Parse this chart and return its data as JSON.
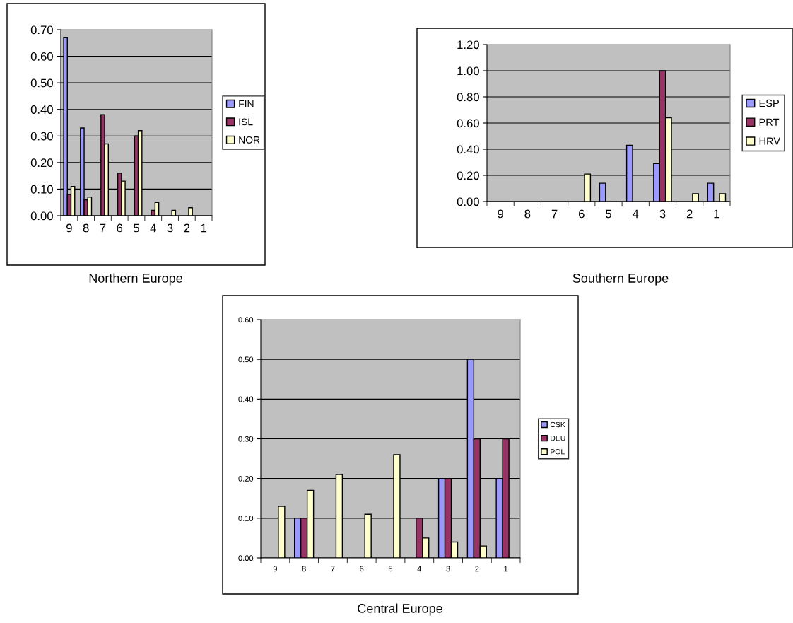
{
  "chart_data": [
    {
      "type": "bar",
      "title": "Northern Europe",
      "categories": [
        "9",
        "8",
        "7",
        "6",
        "5",
        "4",
        "3",
        "2",
        "1"
      ],
      "ylim": [
        0,
        0.7
      ],
      "yticks": [
        {
          "value": 0,
          "label": "0.00"
        },
        {
          "value": 0.1,
          "label": "0.10"
        },
        {
          "value": 0.2,
          "label": "0.20"
        },
        {
          "value": 0.3,
          "label": "0.30"
        },
        {
          "value": 0.4,
          "label": "0.40"
        },
        {
          "value": 0.5,
          "label": "0.50"
        },
        {
          "value": 0.6,
          "label": "0.60"
        },
        {
          "value": 0.7,
          "label": "0.70"
        }
      ],
      "grid": "y",
      "legend": "right",
      "series": [
        {
          "name": "FIN",
          "color": "#9999ff",
          "values": [
            0.67,
            0.33,
            null,
            null,
            null,
            null,
            null,
            null,
            null
          ]
        },
        {
          "name": "ISL",
          "color": "#993366",
          "values": [
            0.08,
            0.06,
            0.38,
            0.16,
            0.3,
            0.02,
            null,
            null,
            null
          ]
        },
        {
          "name": "NOR",
          "color": "#ffffcc",
          "values": [
            0.11,
            0.07,
            0.27,
            0.13,
            0.32,
            0.05,
            0.02,
            0.03,
            null
          ]
        }
      ]
    },
    {
      "type": "bar",
      "title": "Southern Europe",
      "categories": [
        "9",
        "8",
        "7",
        "6",
        "5",
        "4",
        "3",
        "2",
        "1"
      ],
      "ylim": [
        0,
        1.2
      ],
      "yticks": [
        {
          "value": 0,
          "label": "0.00"
        },
        {
          "value": 0.2,
          "label": "0.20"
        },
        {
          "value": 0.4,
          "label": "0.40"
        },
        {
          "value": 0.6,
          "label": "0.60"
        },
        {
          "value": 0.8,
          "label": "0.80"
        },
        {
          "value": 1.0,
          "label": "1.00"
        },
        {
          "value": 1.2,
          "label": "1.20"
        }
      ],
      "grid": "y",
      "legend": "right",
      "series": [
        {
          "name": "ESP",
          "color": "#9999ff",
          "values": [
            null,
            null,
            null,
            null,
            0.14,
            0.43,
            0.29,
            null,
            0.14
          ]
        },
        {
          "name": "PRT",
          "color": "#993366",
          "values": [
            null,
            null,
            null,
            null,
            null,
            null,
            1.0,
            null,
            null
          ]
        },
        {
          "name": "HRV",
          "color": "#ffffcc",
          "values": [
            null,
            null,
            null,
            0.21,
            null,
            null,
            0.64,
            0.06,
            0.06
          ]
        }
      ]
    },
    {
      "type": "bar",
      "title": "Central Europe",
      "categories": [
        "9",
        "8",
        "7",
        "6",
        "5",
        "4",
        "3",
        "2",
        "1"
      ],
      "ylim": [
        0,
        0.6
      ],
      "yticks": [
        {
          "value": 0,
          "label": "0.00"
        },
        {
          "value": 0.1,
          "label": "0.10"
        },
        {
          "value": 0.2,
          "label": "0.20"
        },
        {
          "value": 0.3,
          "label": "0.30"
        },
        {
          "value": 0.4,
          "label": "0.40"
        },
        {
          "value": 0.5,
          "label": "0.50"
        },
        {
          "value": 0.6,
          "label": "0.60"
        }
      ],
      "grid": "y",
      "legend": "right",
      "series": [
        {
          "name": "CSK",
          "color": "#9999ff",
          "values": [
            null,
            0.1,
            null,
            null,
            null,
            null,
            0.2,
            0.5,
            0.2
          ]
        },
        {
          "name": "DEU",
          "color": "#993366",
          "values": [
            null,
            0.1,
            null,
            null,
            null,
            0.1,
            0.2,
            0.3,
            0.3
          ]
        },
        {
          "name": "POL",
          "color": "#ffffcc",
          "values": [
            0.13,
            0.17,
            0.21,
            0.11,
            0.26,
            0.05,
            0.04,
            0.03,
            null
          ]
        }
      ]
    }
  ]
}
